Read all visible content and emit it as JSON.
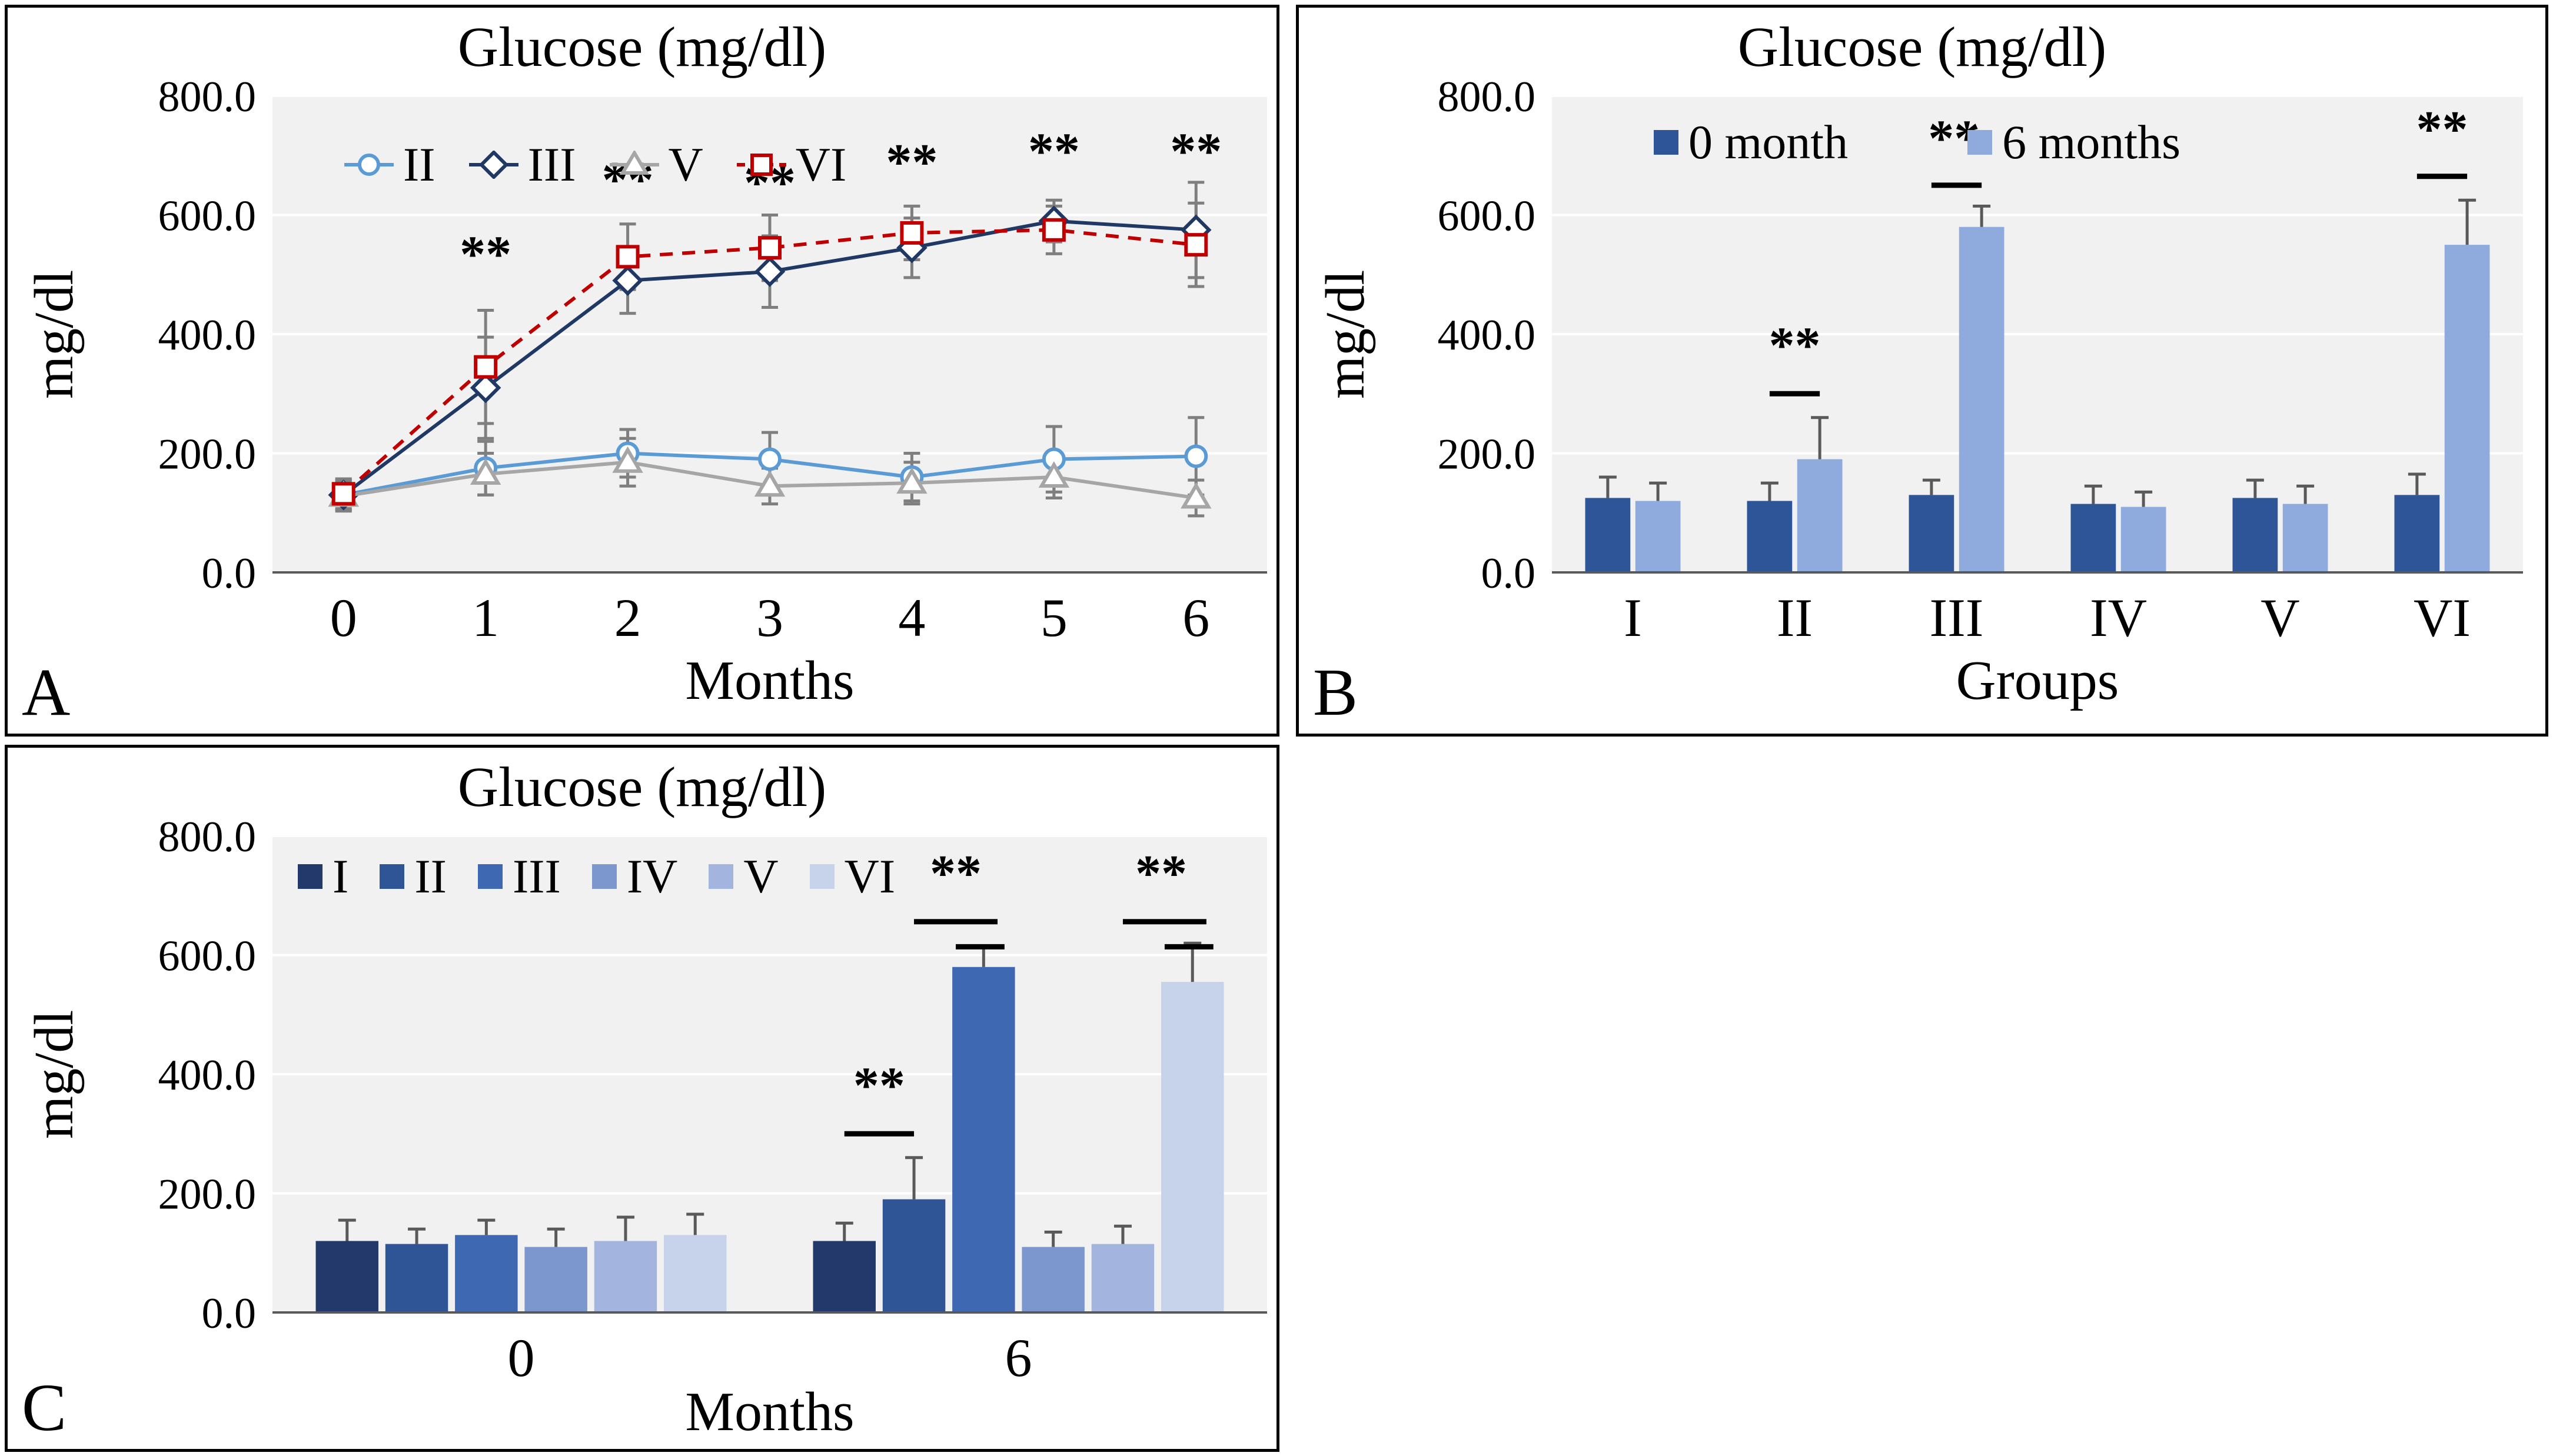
{
  "figure": {
    "background": "#ffffff",
    "panel_border_color": "#000000"
  },
  "chart_data": [
    {
      "panel_label": "A",
      "type": "line",
      "title": "Glucose (mg/dl)",
      "xlabel": "Months",
      "ylabel": "mg/dl",
      "x_tick_labels": [
        "0",
        "1",
        "2",
        "3",
        "4",
        "5",
        "6"
      ],
      "ylim": [
        0,
        800
      ],
      "y_tick_labels": [
        "0.0",
        "200.0",
        "400.0",
        "600.0",
        "800.0"
      ],
      "grid": true,
      "legend_position": "top-inside",
      "series": [
        {
          "name": "II",
          "color": "#5B9BD5",
          "marker": "circle",
          "line_style": "solid",
          "values": [
            130,
            175,
            200,
            190,
            160,
            190,
            195
          ],
          "errors": [
            25,
            45,
            40,
            45,
            40,
            55,
            65
          ]
        },
        {
          "name": "III",
          "color": "#1F3864",
          "marker": "diamond",
          "line_style": "solid",
          "values": [
            130,
            310,
            490,
            505,
            545,
            590,
            575
          ],
          "errors": [
            25,
            85,
            55,
            60,
            50,
            35,
            80
          ]
        },
        {
          "name": "V",
          "color": "#A6A6A6",
          "marker": "triangle",
          "line_style": "solid",
          "values": [
            128,
            165,
            185,
            145,
            150,
            160,
            125
          ],
          "errors": [
            25,
            35,
            40,
            30,
            35,
            35,
            30
          ]
        },
        {
          "name": "VI",
          "color": "#C00000",
          "marker": "square",
          "line_style": "dashed",
          "values": [
            132,
            345,
            530,
            545,
            570,
            575,
            550
          ],
          "errors": [
            25,
            95,
            55,
            55,
            45,
            40,
            70
          ]
        }
      ],
      "annotations": [
        {
          "x_index": 1,
          "y": 505,
          "text": "**"
        },
        {
          "x_index": 2,
          "y": 630,
          "text": "**"
        },
        {
          "x_index": 3,
          "y": 625,
          "text": "**"
        },
        {
          "x_index": 4,
          "y": 660,
          "text": "**"
        },
        {
          "x_index": 5,
          "y": 678,
          "text": "**"
        },
        {
          "x_index": 6,
          "y": 678,
          "text": "**"
        }
      ]
    },
    {
      "panel_label": "B",
      "type": "grouped_bar",
      "title": "Glucose (mg/dl)",
      "xlabel": "Groups",
      "ylabel": "mg/dl",
      "categories": [
        "I",
        "II",
        "III",
        "IV",
        "V",
        "VI"
      ],
      "ylim": [
        0,
        800
      ],
      "y_tick_labels": [
        "0.0",
        "200.0",
        "400.0",
        "600.0",
        "800.0"
      ],
      "grid": true,
      "legend_position": "top-inside",
      "series": [
        {
          "name": "0 month",
          "color": "#2E5597",
          "values": [
            125,
            120,
            130,
            115,
            125,
            130
          ],
          "errors": [
            35,
            30,
            25,
            30,
            30,
            35
          ]
        },
        {
          "name": "6 months",
          "color": "#8FAADC",
          "values": [
            120,
            190,
            580,
            110,
            115,
            550
          ],
          "errors": [
            30,
            70,
            35,
            25,
            30,
            75
          ]
        }
      ],
      "significance": [
        {
          "text": "**",
          "label": {
            "cat": 1,
            "s": 0.5,
            "y": 352
          },
          "lines": [
            {
              "cat": 1,
              "s1": 0,
              "s2": 1,
              "y": 300
            }
          ]
        },
        {
          "text": "**",
          "label": {
            "cat": 2,
            "s": 0.45,
            "y": 700
          },
          "lines": [
            {
              "cat": 2,
              "s1": 0,
              "s2": 1,
              "y": 650
            }
          ]
        },
        {
          "text": "**",
          "label": {
            "cat": 5,
            "s": 0.5,
            "y": 715
          },
          "lines": [
            {
              "cat": 5,
              "s1": 0,
              "s2": 1,
              "y": 665
            }
          ]
        }
      ]
    },
    {
      "panel_label": "C",
      "type": "grouped_bar",
      "title": "Glucose (mg/dl)",
      "xlabel": "Months",
      "ylabel": "mg/dl",
      "categories": [
        "0",
        "6"
      ],
      "ylim": [
        0,
        800
      ],
      "y_tick_labels": [
        "0.0",
        "200.0",
        "400.0",
        "600.0",
        "800.0"
      ],
      "grid": true,
      "legend_position": "top-inside",
      "series": [
        {
          "name": "I",
          "color": "#24396B",
          "values": [
            120,
            120
          ],
          "errors": [
            35,
            30
          ]
        },
        {
          "name": "II",
          "color": "#2F5597",
          "values": [
            115,
            190
          ],
          "errors": [
            25,
            70
          ]
        },
        {
          "name": "III",
          "color": "#3E68B1",
          "values": [
            130,
            580
          ],
          "errors": [
            25,
            35
          ]
        },
        {
          "name": "IV",
          "color": "#7C96CE",
          "values": [
            110,
            110
          ],
          "errors": [
            30,
            25
          ]
        },
        {
          "name": "V",
          "color": "#A3B5DE",
          "values": [
            120,
            115
          ],
          "errors": [
            40,
            30
          ]
        },
        {
          "name": "VI",
          "color": "#C7D2EB",
          "values": [
            130,
            555
          ],
          "errors": [
            35,
            65
          ]
        }
      ],
      "significance": [
        {
          "text": "**",
          "label": {
            "cat": 1,
            "s": 0.5,
            "y": 352
          },
          "lines": [
            {
              "cat": 1,
              "s1": 0,
              "s2": 1,
              "y": 300
            }
          ]
        },
        {
          "text": "**",
          "label": {
            "cat": 1,
            "s": 1.6,
            "y": 708
          },
          "lines": [
            {
              "cat": 1,
              "s1": 1,
              "s2": 2.2,
              "y": 656
            },
            {
              "cat": 1,
              "s1": 1.6,
              "s2": 2.3,
              "y": 614
            }
          ]
        },
        {
          "text": "**",
          "label": {
            "cat": 1,
            "s": 4.55,
            "y": 708
          },
          "lines": [
            {
              "cat": 1,
              "s1": 4,
              "s2": 5.2,
              "y": 656
            },
            {
              "cat": 1,
              "s1": 4.6,
              "s2": 5.3,
              "y": 614
            }
          ]
        }
      ]
    }
  ]
}
